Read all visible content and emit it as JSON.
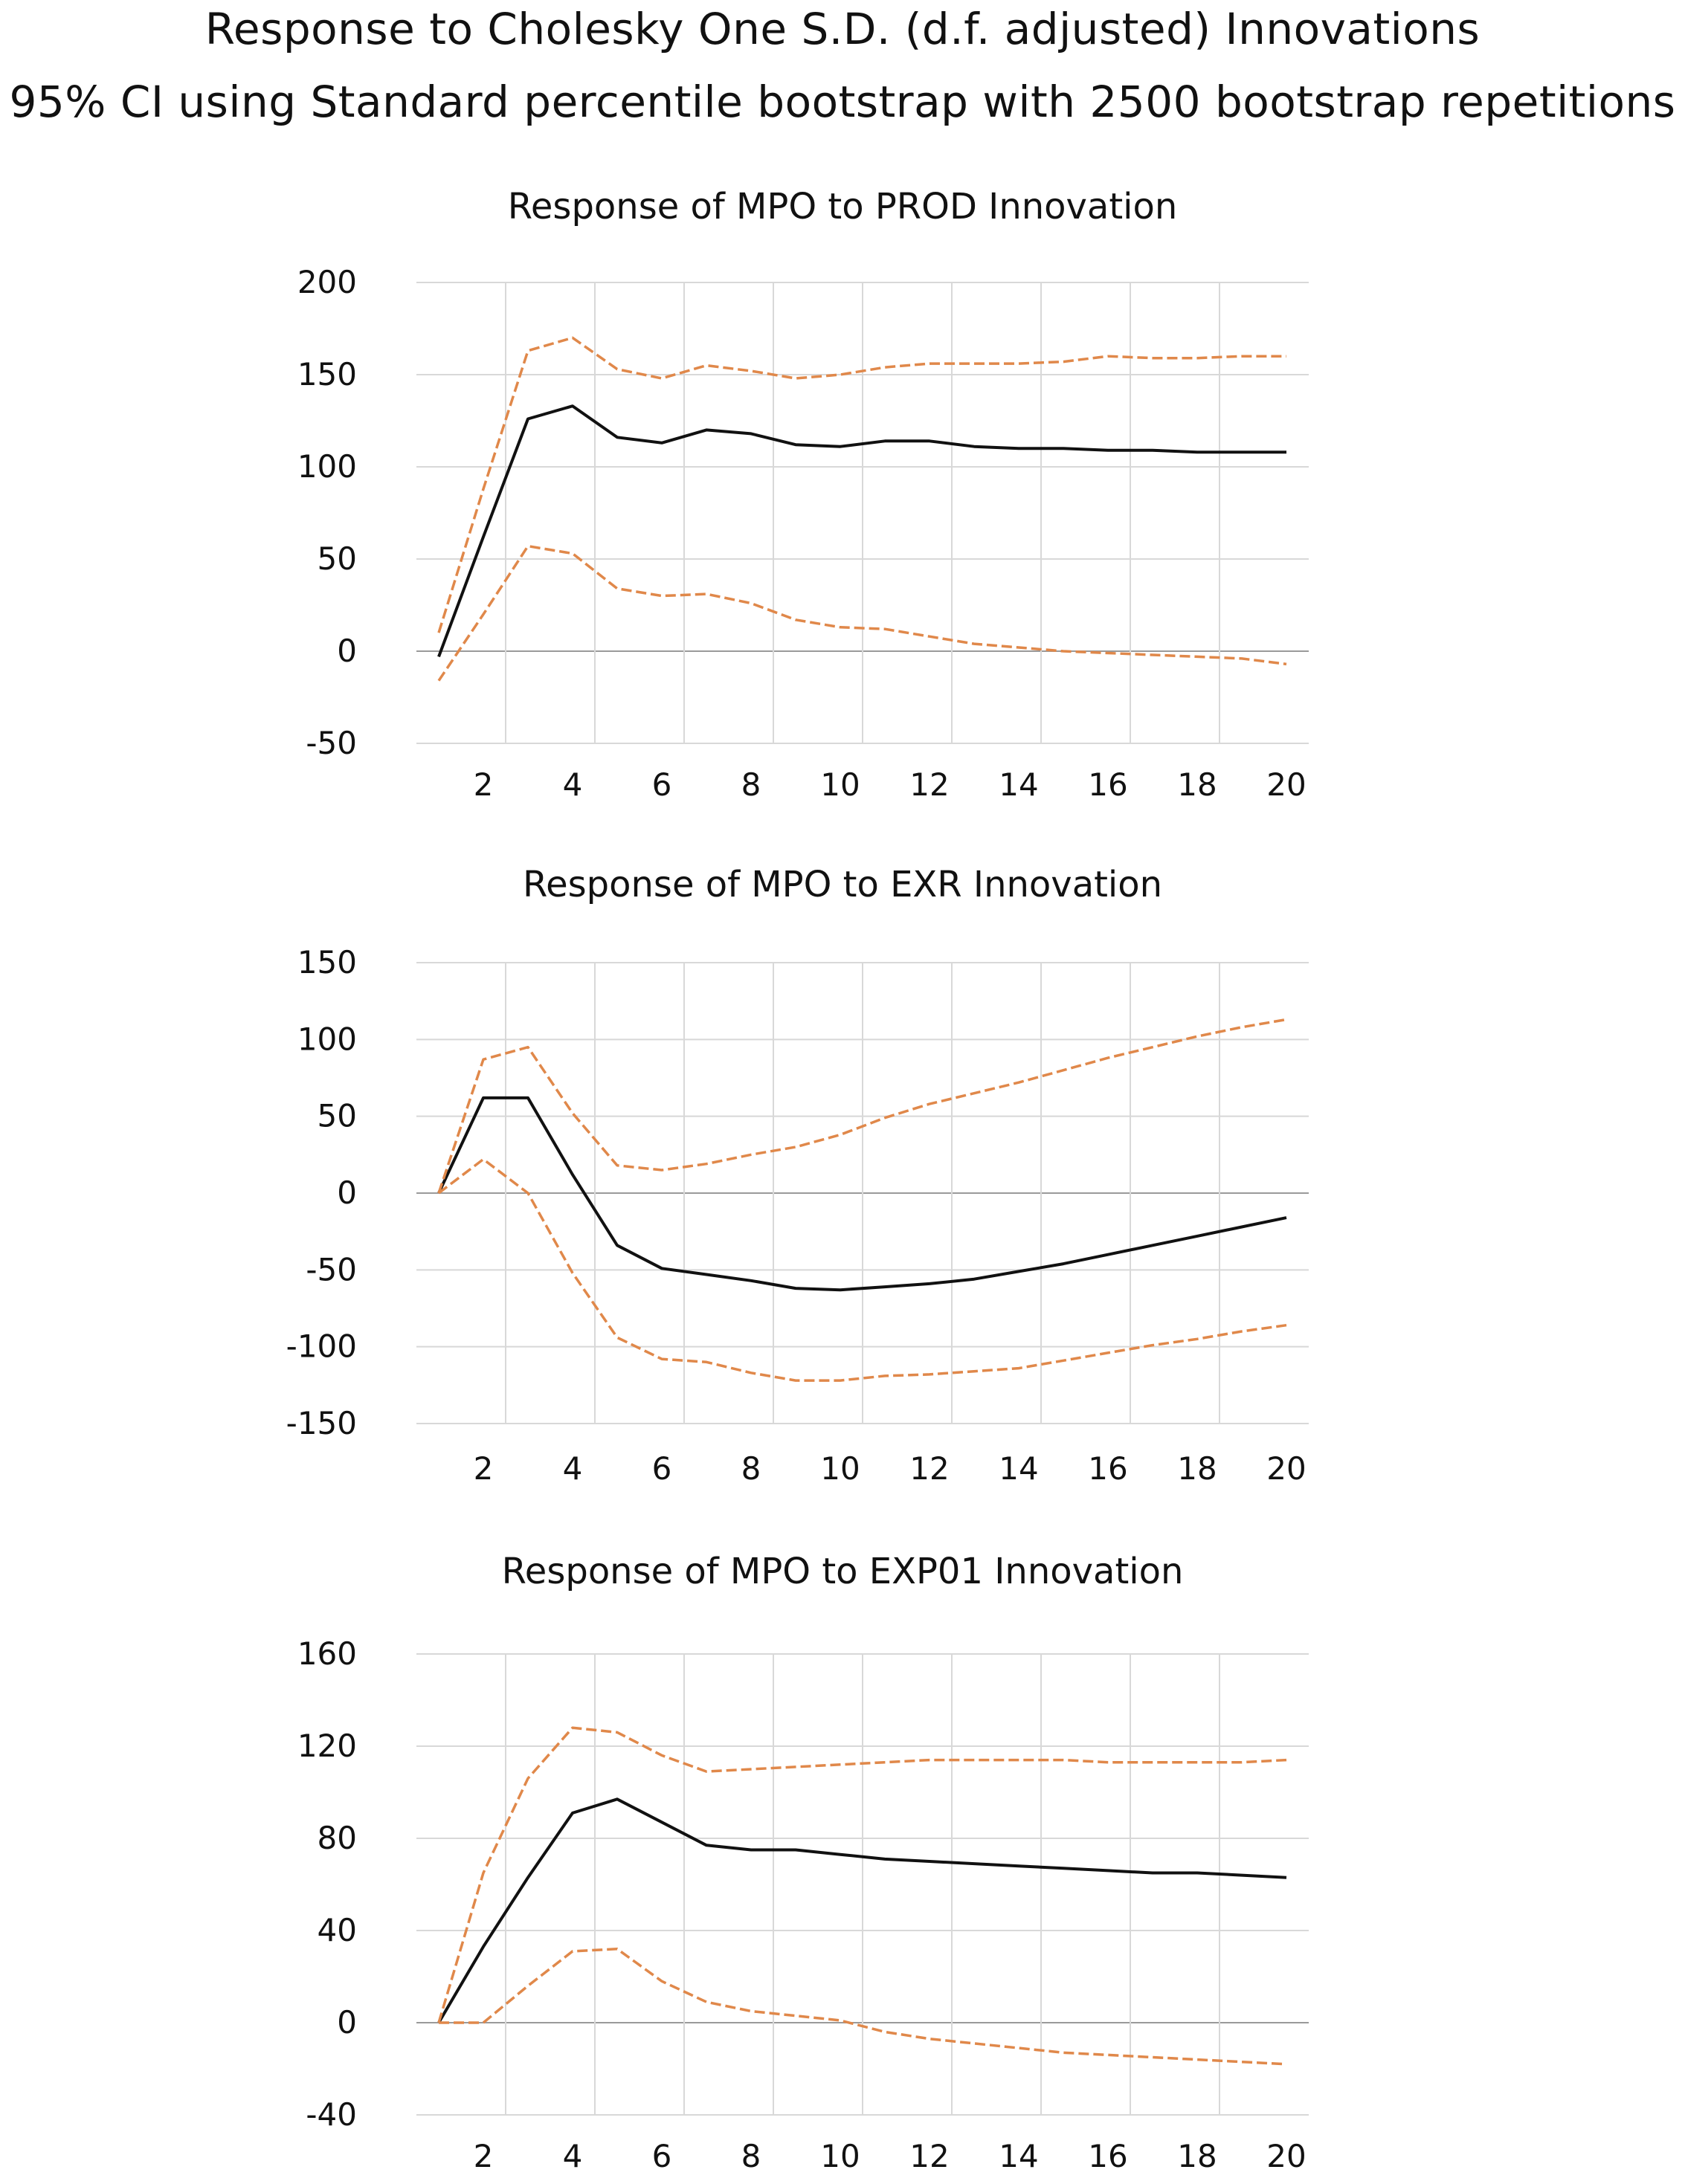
{
  "header": {
    "line1": "Response to Cholesky One S.D. (d.f. adjusted) Innovations",
    "line2": "95% CI using Standard percentile bootstrap with 2500 bootstrap repetitions"
  },
  "colors": {
    "response": "#111111",
    "ci": "#E0884A",
    "grid": "#d8d8d8"
  },
  "chart_data": [
    {
      "type": "line",
      "title": "Response of MPO to PROD Innovation",
      "x": [
        1,
        2,
        3,
        4,
        5,
        6,
        7,
        8,
        9,
        10,
        11,
        12,
        13,
        14,
        15,
        16,
        17,
        18,
        19,
        20
      ],
      "x_ticks": [
        2,
        4,
        6,
        8,
        10,
        12,
        14,
        16,
        18,
        20
      ],
      "ylim": [
        -50,
        200
      ],
      "y_ticks": [
        -50,
        0,
        50,
        100,
        150,
        200
      ],
      "series": [
        {
          "name": "response",
          "values": [
            -3,
            62,
            126,
            133,
            116,
            113,
            120,
            118,
            112,
            111,
            114,
            114,
            111,
            110,
            110,
            109,
            109,
            108,
            108,
            108
          ]
        },
        {
          "name": "upper",
          "values": [
            10,
            88,
            163,
            170,
            153,
            148,
            155,
            152,
            148,
            150,
            154,
            156,
            156,
            156,
            157,
            160,
            159,
            159,
            160,
            160
          ]
        },
        {
          "name": "lower",
          "values": [
            -16,
            20,
            57,
            53,
            34,
            30,
            31,
            26,
            17,
            13,
            12,
            8,
            4,
            2,
            0,
            -1,
            -2,
            -3,
            -4,
            -7
          ]
        }
      ]
    },
    {
      "type": "line",
      "title": "Response of MPO to EXR Innovation",
      "x": [
        1,
        2,
        3,
        4,
        5,
        6,
        7,
        8,
        9,
        10,
        11,
        12,
        13,
        14,
        15,
        16,
        17,
        18,
        19,
        20
      ],
      "x_ticks": [
        2,
        4,
        6,
        8,
        10,
        12,
        14,
        16,
        18,
        20
      ],
      "ylim": [
        -150,
        150
      ],
      "y_ticks": [
        -150,
        -100,
        -50,
        0,
        50,
        100,
        150
      ],
      "series": [
        {
          "name": "response",
          "values": [
            0,
            62,
            62,
            12,
            -34,
            -49,
            -53,
            -57,
            -62,
            -63,
            -61,
            -59,
            -56,
            -51,
            -46,
            -40,
            -34,
            -28,
            -22,
            -16
          ]
        },
        {
          "name": "upper",
          "values": [
            0,
            87,
            95,
            52,
            18,
            15,
            19,
            25,
            30,
            38,
            49,
            58,
            65,
            72,
            80,
            88,
            95,
            102,
            108,
            113
          ]
        },
        {
          "name": "lower",
          "values": [
            0,
            22,
            0,
            -52,
            -94,
            -108,
            -110,
            -117,
            -122,
            -122,
            -119,
            -118,
            -116,
            -114,
            -109,
            -104,
            -99,
            -95,
            -90,
            -86
          ]
        }
      ]
    },
    {
      "type": "line",
      "title": "Response of MPO to EXP01 Innovation",
      "x": [
        1,
        2,
        3,
        4,
        5,
        6,
        7,
        8,
        9,
        10,
        11,
        12,
        13,
        14,
        15,
        16,
        17,
        18,
        19,
        20
      ],
      "x_ticks": [
        2,
        4,
        6,
        8,
        10,
        12,
        14,
        16,
        18,
        20
      ],
      "ylim": [
        -40,
        160
      ],
      "y_ticks": [
        -40,
        0,
        40,
        80,
        120,
        160
      ],
      "series": [
        {
          "name": "response",
          "values": [
            0,
            33,
            63,
            91,
            97,
            87,
            77,
            75,
            75,
            73,
            71,
            70,
            69,
            68,
            67,
            66,
            65,
            65,
            64,
            63
          ]
        },
        {
          "name": "upper",
          "values": [
            0,
            65,
            106,
            128,
            126,
            116,
            109,
            110,
            111,
            112,
            113,
            114,
            114,
            114,
            114,
            113,
            113,
            113,
            113,
            114
          ]
        },
        {
          "name": "lower",
          "values": [
            0,
            0,
            16,
            31,
            32,
            18,
            9,
            5,
            3,
            1,
            -4,
            -7,
            -9,
            -11,
            -13,
            -14,
            -15,
            -16,
            -17,
            -18
          ]
        }
      ]
    }
  ]
}
